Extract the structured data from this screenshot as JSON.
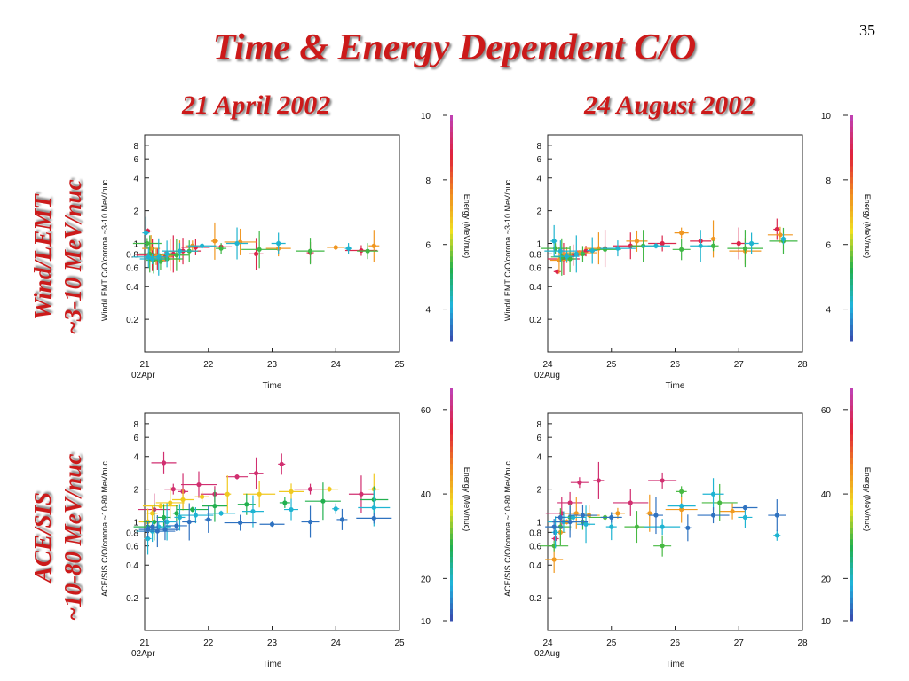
{
  "slide": {
    "page_number": "35",
    "title": "Time & Energy Dependent C/O",
    "column_titles": [
      "21 April 2002",
      "24 August 2002"
    ],
    "row_titles": [
      [
        "Wind/LEMT",
        "~3-10 MeV/nuc"
      ],
      [
        "ACE/SIS",
        "~10-80 MeV/nuc"
      ]
    ]
  },
  "colors": {
    "title_red": "#cc1a1a",
    "energy_scale": [
      "#3b3fa8",
      "#1fb4e0",
      "#22b04a",
      "#f0e020",
      "#f08a20",
      "#e0203a",
      "#c040b0"
    ]
  },
  "chart_data": [
    {
      "id": "wind-april",
      "type": "scatter",
      "xlabel": "Time",
      "ylabel": "Wind/LEMT C/O/corona ~3-10 MeV/nuc",
      "xlim": [
        21,
        25
      ],
      "xticks": [
        "21",
        "22",
        "23",
        "24",
        "25"
      ],
      "xsub": "02Apr",
      "ylim": [
        0.1,
        10
      ],
      "ylog": true,
      "yticks": [
        0.2,
        0.4,
        0.6,
        0.8,
        1,
        2,
        4,
        6,
        8
      ],
      "ytick_labels": [
        "0.2",
        "0.4",
        "0.6",
        "0.8",
        "1",
        "2",
        "4",
        "6",
        "8"
      ],
      "colorbar": {
        "label": "Energy (MeV/nuc)",
        "min": 3,
        "max": 10,
        "ticks": [
          4,
          6,
          8,
          10
        ],
        "tick_labels": [
          "4",
          "6",
          "8",
          "10"
        ]
      },
      "series": [
        {
          "energy": 9.0,
          "points": [
            [
              21.05,
              1.3
            ],
            [
              21.12,
              0.78
            ],
            [
              21.2,
              0.72
            ],
            [
              21.32,
              0.75
            ],
            [
              21.45,
              0.8
            ],
            [
              21.6,
              0.85
            ],
            [
              21.8,
              0.92
            ],
            [
              22.2,
              0.93
            ],
            [
              22.75,
              0.8
            ],
            [
              23.6,
              0.82
            ],
            [
              24.4,
              0.86
            ]
          ]
        },
        {
          "energy": 7.5,
          "points": [
            [
              21.1,
              0.9
            ],
            [
              21.18,
              0.75
            ],
            [
              21.28,
              0.72
            ],
            [
              21.4,
              0.78
            ],
            [
              21.55,
              0.85
            ],
            [
              21.75,
              0.95
            ],
            [
              22.1,
              1.05
            ],
            [
              22.5,
              1.03
            ],
            [
              23.1,
              0.9
            ],
            [
              24.0,
              0.92
            ],
            [
              24.6,
              0.95
            ]
          ]
        },
        {
          "energy": 5.5,
          "points": [
            [
              21.04,
              1.0
            ],
            [
              21.08,
              0.8
            ],
            [
              21.14,
              0.7
            ],
            [
              21.25,
              0.68
            ],
            [
              21.35,
              0.72
            ],
            [
              21.5,
              0.78
            ],
            [
              21.7,
              0.85
            ],
            [
              22.2,
              0.9
            ],
            [
              22.8,
              0.88
            ],
            [
              23.6,
              0.85
            ],
            [
              24.5,
              0.85
            ]
          ]
        },
        {
          "energy": 4.3,
          "points": [
            [
              21.02,
              1.25
            ],
            [
              21.06,
              0.75
            ],
            [
              21.12,
              0.72
            ],
            [
              21.22,
              0.75
            ],
            [
              21.35,
              0.8
            ],
            [
              21.55,
              0.85
            ],
            [
              21.9,
              0.95
            ],
            [
              22.45,
              1.0
            ],
            [
              23.1,
              1.0
            ],
            [
              24.2,
              0.9
            ]
          ]
        }
      ]
    },
    {
      "id": "wind-august",
      "type": "scatter",
      "xlabel": "Time",
      "ylabel": "Wind/LEMT C/O/corona ~3-10 MeV/nuc",
      "xlim": [
        24,
        28
      ],
      "xticks": [
        "24",
        "25",
        "26",
        "27",
        "28"
      ],
      "xsub": "02Aug",
      "ylim": [
        0.1,
        10
      ],
      "ylog": true,
      "yticks": [
        0.2,
        0.4,
        0.6,
        0.8,
        1,
        2,
        4,
        6,
        8
      ],
      "ytick_labels": [
        "0.2",
        "0.4",
        "0.6",
        "0.8",
        "1",
        "2",
        "4",
        "6",
        "8"
      ],
      "colorbar": {
        "label": "Energy (MeV/nuc)",
        "min": 3,
        "max": 10,
        "ticks": [
          4,
          6,
          8,
          10
        ],
        "tick_labels": [
          "4",
          "6",
          "8",
          "10"
        ]
      },
      "series": [
        {
          "energy": 9.0,
          "points": [
            [
              24.15,
              0.55
            ],
            [
              24.25,
              0.72
            ],
            [
              24.4,
              0.78
            ],
            [
              24.6,
              0.85
            ],
            [
              24.9,
              0.9
            ],
            [
              25.3,
              0.95
            ],
            [
              25.8,
              1.0
            ],
            [
              26.4,
              1.05
            ],
            [
              27.0,
              1.0
            ],
            [
              27.6,
              1.35
            ]
          ]
        },
        {
          "energy": 7.5,
          "points": [
            [
              24.18,
              0.7
            ],
            [
              24.3,
              0.78
            ],
            [
              24.5,
              0.82
            ],
            [
              24.8,
              0.9
            ],
            [
              25.4,
              1.05
            ],
            [
              26.1,
              1.25
            ],
            [
              26.6,
              1.1
            ],
            [
              27.1,
              0.85
            ],
            [
              27.65,
              1.2
            ]
          ]
        },
        {
          "energy": 5.5,
          "points": [
            [
              24.12,
              0.9
            ],
            [
              24.22,
              0.75
            ],
            [
              24.35,
              0.72
            ],
            [
              24.55,
              0.8
            ],
            [
              24.9,
              0.88
            ],
            [
              25.5,
              0.95
            ],
            [
              26.1,
              0.88
            ],
            [
              26.6,
              0.95
            ],
            [
              27.1,
              0.9
            ],
            [
              27.7,
              1.05
            ]
          ]
        },
        {
          "energy": 4.3,
          "points": [
            [
              24.1,
              1.05
            ],
            [
              24.2,
              0.85
            ],
            [
              24.3,
              0.76
            ],
            [
              24.45,
              0.8
            ],
            [
              24.7,
              0.86
            ],
            [
              25.1,
              0.9
            ],
            [
              25.7,
              0.95
            ],
            [
              26.4,
              0.95
            ],
            [
              27.2,
              1.0
            ],
            [
              27.7,
              1.1
            ]
          ]
        }
      ]
    },
    {
      "id": "ace-april",
      "type": "scatter",
      "xlabel": "Time",
      "ylabel": "ACE/SIS C/O/corona ~10-80 MeV/nuc",
      "xlim": [
        21,
        25
      ],
      "xticks": [
        "21",
        "22",
        "23",
        "24",
        "25"
      ],
      "xsub": "02Apr",
      "ylim": [
        0.1,
        10
      ],
      "ylog": true,
      "yticks": [
        0.2,
        0.4,
        0.6,
        0.8,
        1,
        2,
        4,
        6,
        8
      ],
      "ytick_labels": [
        "0.2",
        "0.4",
        "0.6",
        "0.8",
        "1",
        "2",
        "4",
        "6",
        "8"
      ],
      "colorbar": {
        "label": "Energy (MeV/nuc)",
        "min": 10,
        "max": 65,
        "ticks": [
          10,
          20,
          40,
          60
        ],
        "tick_labels": [
          "10",
          "20",
          "40",
          "60"
        ]
      },
      "series": [
        {
          "energy": 60,
          "points": [
            [
              21.05,
              1.0
            ],
            [
              21.15,
              1.3
            ],
            [
              21.3,
              3.5
            ],
            [
              21.45,
              2.0
            ],
            [
              21.6,
              1.9
            ],
            [
              21.85,
              2.2
            ],
            [
              22.1,
              1.8
            ],
            [
              22.45,
              2.6
            ],
            [
              22.75,
              2.8
            ],
            [
              23.15,
              3.4
            ],
            [
              23.6,
              2.0
            ],
            [
              24.4,
              1.8
            ]
          ]
        },
        {
          "energy": 40,
          "points": [
            [
              21.05,
              1.0
            ],
            [
              21.12,
              1.2
            ],
            [
              21.25,
              1.4
            ],
            [
              21.4,
              1.5
            ],
            [
              21.6,
              1.6
            ],
            [
              21.9,
              1.7
            ],
            [
              22.3,
              1.8
            ],
            [
              22.8,
              1.8
            ],
            [
              23.3,
              1.9
            ],
            [
              23.9,
              2.0
            ],
            [
              24.6,
              2.0
            ]
          ]
        },
        {
          "energy": 28,
          "points": [
            [
              21.05,
              0.9
            ],
            [
              21.15,
              1.0
            ],
            [
              21.3,
              1.1
            ],
            [
              21.5,
              1.2
            ],
            [
              21.75,
              1.3
            ],
            [
              22.1,
              1.4
            ],
            [
              22.6,
              1.45
            ],
            [
              23.2,
              1.5
            ],
            [
              23.8,
              1.55
            ],
            [
              24.6,
              1.6
            ]
          ]
        },
        {
          "energy": 20,
          "points": [
            [
              21.05,
              0.7
            ],
            [
              21.12,
              0.82
            ],
            [
              21.22,
              0.9
            ],
            [
              21.35,
              1.0
            ],
            [
              21.55,
              1.1
            ],
            [
              21.8,
              1.15
            ],
            [
              22.2,
              1.2
            ],
            [
              22.7,
              1.25
            ],
            [
              23.3,
              1.3
            ],
            [
              24.0,
              1.32
            ],
            [
              24.6,
              1.35
            ]
          ]
        },
        {
          "energy": 14,
          "points": [
            [
              21.05,
              0.85
            ],
            [
              21.12,
              0.9
            ],
            [
              21.2,
              0.82
            ],
            [
              21.32,
              0.85
            ],
            [
              21.5,
              0.92
            ],
            [
              21.7,
              1.0
            ],
            [
              22.0,
              1.05
            ],
            [
              22.5,
              0.98
            ],
            [
              23.0,
              0.95
            ],
            [
              23.6,
              1.0
            ],
            [
              24.1,
              1.05
            ],
            [
              24.6,
              1.08
            ]
          ]
        }
      ]
    },
    {
      "id": "ace-august",
      "type": "scatter",
      "xlabel": "Time",
      "ylabel": "ACE/SIS C/O/corona ~10-80 MeV/nuc",
      "xlim": [
        24,
        28
      ],
      "xticks": [
        "24",
        "25",
        "26",
        "27",
        "28"
      ],
      "xsub": "02Aug",
      "ylim": [
        0.1,
        10
      ],
      "ylog": true,
      "yticks": [
        0.2,
        0.4,
        0.6,
        0.8,
        1,
        2,
        4,
        6,
        8
      ],
      "ytick_labels": [
        "0.2",
        "0.4",
        "0.6",
        "0.8",
        "1",
        "2",
        "4",
        "6",
        "8"
      ],
      "colorbar": {
        "label": "Energy (MeV/nuc)",
        "min": 10,
        "max": 65,
        "ticks": [
          10,
          20,
          40,
          60
        ],
        "tick_labels": [
          "10",
          "20",
          "40",
          "60"
        ]
      },
      "series": [
        {
          "energy": 60,
          "points": [
            [
              24.12,
              0.7
            ],
            [
              24.22,
              1.2
            ],
            [
              24.35,
              1.5
            ],
            [
              24.5,
              2.3
            ],
            [
              24.8,
              2.4
            ],
            [
              25.3,
              1.5
            ],
            [
              25.8,
              2.4
            ]
          ]
        },
        {
          "energy": 45,
          "points": [
            [
              24.1,
              0.45
            ],
            [
              24.2,
              0.8
            ],
            [
              24.3,
              1.0
            ],
            [
              24.45,
              1.2
            ],
            [
              24.65,
              1.15
            ],
            [
              25.1,
              1.2
            ],
            [
              25.6,
              1.2
            ],
            [
              26.1,
              1.3
            ],
            [
              26.9,
              1.25
            ]
          ]
        },
        {
          "energy": 30,
          "points": [
            [
              24.1,
              0.6
            ],
            [
              24.2,
              0.9
            ],
            [
              24.35,
              1.1
            ],
            [
              24.55,
              1.0
            ],
            [
              24.9,
              1.1
            ],
            [
              25.4,
              0.9
            ],
            [
              25.8,
              0.6
            ],
            [
              26.1,
              1.9
            ],
            [
              26.7,
              1.5
            ]
          ]
        },
        {
          "energy": 20,
          "points": [
            [
              24.12,
              0.8
            ],
            [
              24.25,
              1.0
            ],
            [
              24.4,
              1.1
            ],
            [
              24.6,
              0.95
            ],
            [
              25.0,
              0.9
            ],
            [
              25.8,
              0.9
            ],
            [
              26.1,
              1.4
            ],
            [
              26.6,
              1.8
            ],
            [
              27.1,
              1.1
            ],
            [
              27.6,
              0.75
            ]
          ]
        },
        {
          "energy": 14,
          "points": [
            [
              24.1,
              0.9
            ],
            [
              24.2,
              1.1
            ],
            [
              24.35,
              1.0
            ],
            [
              24.55,
              1.15
            ],
            [
              25.0,
              1.1
            ],
            [
              25.7,
              1.15
            ],
            [
              26.2,
              0.88
            ],
            [
              26.6,
              1.15
            ],
            [
              27.1,
              1.35
            ],
            [
              27.6,
              1.15
            ]
          ]
        }
      ]
    }
  ]
}
